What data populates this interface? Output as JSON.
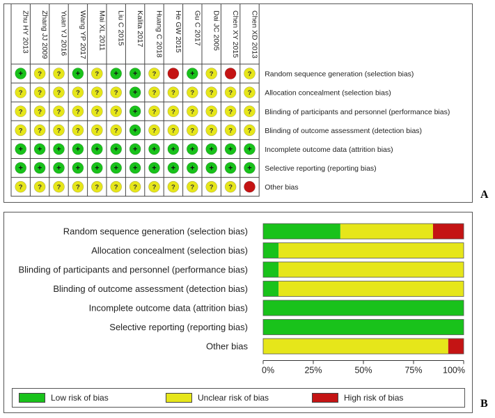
{
  "colors": {
    "low": "#19c21b",
    "unclear": "#e6e61a",
    "high": "#c41414"
  },
  "panel_letters": {
    "a": "A",
    "b": "B"
  },
  "icons": {
    "low": "+",
    "unclear": "?",
    "high": ""
  },
  "chart_data": [
    {
      "type": "table",
      "columns": [
        "Zhu HY 2013",
        "Zhang JJ 2009",
        "Yuan YJ 2016",
        "Wang YP 2017",
        "Mai XL 2011",
        "Liu C 2015",
        "Kalita 2017",
        "Huang C 2018",
        "He GW 2015",
        "Gu C 2017",
        "Dai JC 2005",
        "Chen XY 2015",
        "Chen XD 2013"
      ],
      "rows": [
        {
          "domain": "Random sequence generation (selection bias)",
          "judgements": [
            "low",
            "unclear",
            "unclear",
            "low",
            "unclear",
            "low",
            "low",
            "unclear",
            "high",
            "low",
            "unclear",
            "high",
            "unclear"
          ]
        },
        {
          "domain": "Allocation concealment (selection bias)",
          "judgements": [
            "unclear",
            "unclear",
            "unclear",
            "unclear",
            "unclear",
            "unclear",
            "low",
            "unclear",
            "unclear",
            "unclear",
            "unclear",
            "unclear",
            "unclear"
          ]
        },
        {
          "domain": "Blinding of participants and personnel (performance bias)",
          "judgements": [
            "unclear",
            "unclear",
            "unclear",
            "unclear",
            "unclear",
            "unclear",
            "low",
            "unclear",
            "unclear",
            "unclear",
            "unclear",
            "unclear",
            "unclear"
          ]
        },
        {
          "domain": "Blinding of outcome assessment (detection bias)",
          "judgements": [
            "unclear",
            "unclear",
            "unclear",
            "unclear",
            "unclear",
            "unclear",
            "low",
            "unclear",
            "unclear",
            "unclear",
            "unclear",
            "unclear",
            "unclear"
          ]
        },
        {
          "domain": "Incomplete outcome data (attrition bias)",
          "judgements": [
            "low",
            "low",
            "low",
            "low",
            "low",
            "low",
            "low",
            "low",
            "low",
            "low",
            "low",
            "low",
            "low"
          ]
        },
        {
          "domain": "Selective reporting (reporting bias)",
          "judgements": [
            "low",
            "low",
            "low",
            "low",
            "low",
            "low",
            "low",
            "low",
            "low",
            "low",
            "low",
            "low",
            "low"
          ]
        },
        {
          "domain": "Other bias",
          "judgements": [
            "unclear",
            "unclear",
            "unclear",
            "unclear",
            "unclear",
            "unclear",
            "unclear",
            "unclear",
            "unclear",
            "unclear",
            "unclear",
            "unclear",
            "high"
          ]
        }
      ]
    },
    {
      "type": "bar",
      "orientation": "horizontal",
      "stacked": true,
      "categories": [
        "Random sequence generation (selection bias)",
        "Allocation concealment (selection bias)",
        "Blinding of participants and personnel (performance bias)",
        "Blinding of outcome assessment (detection bias)",
        "Incomplete outcome data (attrition bias)",
        "Selective reporting (reporting bias)",
        "Other bias"
      ],
      "series": [
        {
          "name": "Low risk of bias",
          "color_key": "low",
          "values": [
            38.5,
            7.7,
            7.7,
            7.7,
            100,
            100,
            0
          ]
        },
        {
          "name": "Unclear risk of bias",
          "color_key": "unclear",
          "values": [
            46.2,
            92.3,
            92.3,
            92.3,
            0,
            0,
            92.3
          ]
        },
        {
          "name": "High risk of bias",
          "color_key": "high",
          "values": [
            15.4,
            0,
            0,
            0,
            0,
            0,
            7.7
          ]
        }
      ],
      "xlim": [
        0,
        100
      ],
      "xticks": [
        "0%",
        "25%",
        "50%",
        "75%",
        "100%"
      ],
      "legend_position": "bottom"
    }
  ]
}
